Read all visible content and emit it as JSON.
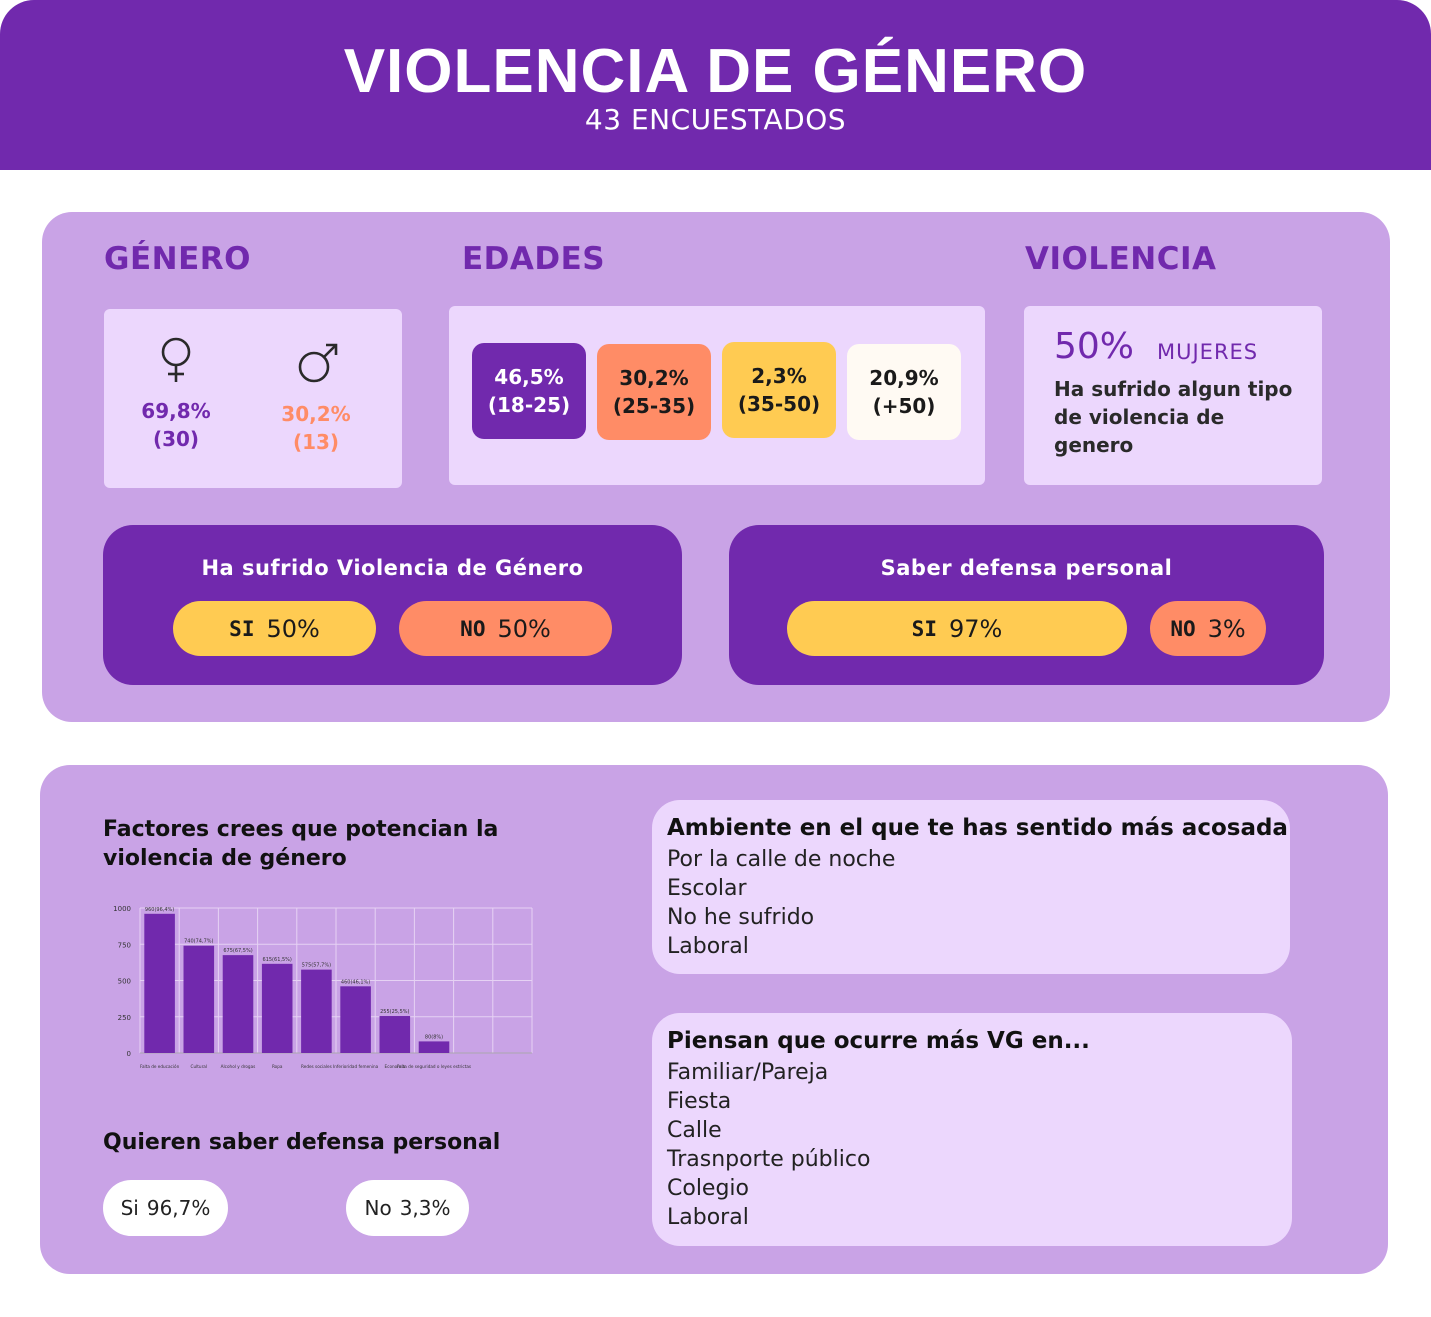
{
  "header": {
    "title": "VIOLENCIA DE GÉNERO",
    "subtitle": "43 ENCUESTADOS"
  },
  "genero": {
    "title": "GÉNERO",
    "female": {
      "icon": "female-symbol-icon",
      "pct": "69,8%",
      "count": "(30)",
      "color": "#7129ad"
    },
    "male": {
      "icon": "male-symbol-icon",
      "pct": "30,2%",
      "count": "(13)",
      "color": "#ff8c66"
    }
  },
  "edades": {
    "title": "EDADES",
    "groups": [
      {
        "pct": "46,5%",
        "range": "(18-25)",
        "bg": "#7129ad",
        "fg": "#ffffff"
      },
      {
        "pct": "30,2%",
        "range": "(25-35)",
        "bg": "#ff8c66",
        "fg": "#1a1a1a"
      },
      {
        "pct": "2,3%",
        "range": "(35-50)",
        "bg": "#ffcb52",
        "fg": "#1a1a1a"
      },
      {
        "pct": "20,9%",
        "range": "(+50)",
        "bg": "#fffaf3",
        "fg": "#1a1a1a"
      }
    ]
  },
  "violencia": {
    "title": "VIOLENCIA",
    "pct": "50%",
    "who": "MUJERES",
    "desc": "Ha sufrido algun tipo de violencia de genero"
  },
  "sufrido": {
    "title": "Ha sufrido Violencia de Género",
    "si_label": "SI",
    "si_value": "50%",
    "no_label": "NO",
    "no_value": "50%"
  },
  "defensa": {
    "title": "Saber defensa personal",
    "si_label": "SI",
    "si_value": "97%",
    "no_label": "NO",
    "no_value": "3%"
  },
  "factores": {
    "title": "Factores crees que potencian la violencia de género"
  },
  "chart_data": {
    "type": "bar",
    "categories": [
      "Falta de educación",
      "Cultural",
      "Alcohol y drogas",
      "Ropa",
      "Redes sociales",
      "Inferioridad femenina",
      "Economía",
      "Falta de seguridad o leyes estrictas"
    ],
    "values": [
      960,
      740,
      675,
      615,
      575,
      460,
      255,
      80
    ],
    "data_labels": [
      "960(96,4%)",
      "740(74,7%)",
      "675(67,5%)",
      "615(61,5%)",
      "575(57,7%)",
      "460(46,1%)",
      "255(25,5%)",
      "80(8%)"
    ],
    "yticks": [
      "0",
      "250",
      "500",
      "750",
      "1000"
    ],
    "ylim": [
      0,
      1000
    ],
    "color": "#7129ad",
    "grid": true
  },
  "quieren": {
    "title": "Quieren saber defensa personal",
    "si_label": "Si",
    "si_value": "96,7%",
    "no_label": "No",
    "no_value": "3,3%"
  },
  "ambiente": {
    "title": "Ambiente en el que te has sentido más acosada",
    "items": [
      "Por la calle de noche",
      "Escolar",
      "No he sufrido",
      "Laboral"
    ]
  },
  "piensan": {
    "title": "Piensan que ocurre más VG en...",
    "items": [
      "Familiar/Pareja",
      "Fiesta",
      "Calle",
      "Trasnporte público",
      "Colegio",
      "Laboral"
    ]
  },
  "colors": {
    "purple": "#7129ad",
    "lavender": "#c9a3e6",
    "light": "#ecd7fd",
    "yellow": "#ffcb52",
    "orange": "#ff8c66"
  }
}
